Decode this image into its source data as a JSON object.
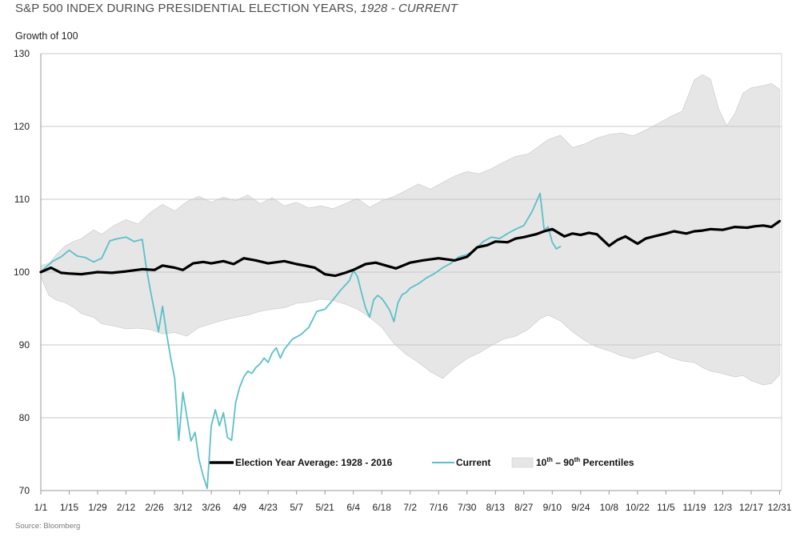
{
  "chart_data": {
    "type": "line",
    "title": "S&P 500 INDEX DURING PRESIDENTIAL ELECTION YEARS,",
    "title_suffix": "1928 - CURRENT",
    "ylabel": "Growth of 100",
    "source": "Source: Bloomberg",
    "ylim": [
      70,
      130
    ],
    "yticks": [
      70,
      80,
      90,
      100,
      110,
      120,
      130
    ],
    "xlim": [
      0,
      365
    ],
    "xticks": [
      {
        "label": "1/1",
        "day": 0
      },
      {
        "label": "1/15",
        "day": 14
      },
      {
        "label": "1/29",
        "day": 28
      },
      {
        "label": "2/12",
        "day": 42
      },
      {
        "label": "2/26",
        "day": 56
      },
      {
        "label": "3/12",
        "day": 70
      },
      {
        "label": "3/26",
        "day": 84
      },
      {
        "label": "4/9",
        "day": 98
      },
      {
        "label": "4/23",
        "day": 112
      },
      {
        "label": "5/7",
        "day": 126
      },
      {
        "label": "5/21",
        "day": 140
      },
      {
        "label": "6/4",
        "day": 154
      },
      {
        "label": "6/18",
        "day": 168
      },
      {
        "label": "7/2",
        "day": 182
      },
      {
        "label": "7/16",
        "day": 196
      },
      {
        "label": "7/30",
        "day": 210
      },
      {
        "label": "8/13",
        "day": 224
      },
      {
        "label": "8/27",
        "day": 238
      },
      {
        "label": "9/10",
        "day": 252
      },
      {
        "label": "9/24",
        "day": 266
      },
      {
        "label": "10/8",
        "day": 280
      },
      {
        "label": "10/22",
        "day": 294
      },
      {
        "label": "11/5",
        "day": 308
      },
      {
        "label": "11/19",
        "day": 322
      },
      {
        "label": "12/3",
        "day": 336
      },
      {
        "label": "12/17",
        "day": 350
      },
      {
        "label": "12/31",
        "day": 364
      }
    ],
    "legend": {
      "average": "Election Year Average: 1928 - 2016",
      "current": "Current",
      "band_prefix": "10",
      "band_sup1": "th",
      "band_mid": " – 90",
      "band_sup2": "th",
      "band_suffix": " Percentiles"
    },
    "colors": {
      "average": "#000000",
      "current": "#5bc0c9",
      "band": "#e6e6e6",
      "band_edge": "#c8c8c8",
      "grid": "#c8c8c8"
    },
    "series": [
      {
        "name": "Election Year Average: 1928 - 2016",
        "x": [
          0,
          5,
          10,
          14,
          20,
          28,
          35,
          42,
          50,
          56,
          60,
          66,
          70,
          75,
          80,
          84,
          90,
          95,
          100,
          106,
          112,
          120,
          126,
          130,
          135,
          140,
          145,
          150,
          154,
          160,
          165,
          170,
          175,
          182,
          188,
          196,
          204,
          210,
          215,
          220,
          224,
          230,
          234,
          238,
          244,
          248,
          252,
          258,
          262,
          266,
          270,
          274,
          280,
          284,
          288,
          294,
          298,
          302,
          308,
          312,
          318,
          322,
          326,
          330,
          336,
          342,
          348,
          352,
          356,
          360,
          364
        ],
        "values": [
          100,
          100.6,
          99.9,
          99.8,
          99.7,
          100,
          99.9,
          100.1,
          100.4,
          100.3,
          100.9,
          100.6,
          100.3,
          101.2,
          101.4,
          101.2,
          101.5,
          101.1,
          101.9,
          101.6,
          101.2,
          101.5,
          101.1,
          100.9,
          100.6,
          99.7,
          99.5,
          99.9,
          100.3,
          101.1,
          101.3,
          100.9,
          100.5,
          101.3,
          101.6,
          101.9,
          101.6,
          102.1,
          103.4,
          103.7,
          104.2,
          104.1,
          104.6,
          104.8,
          105.2,
          105.6,
          105.9,
          104.9,
          105.3,
          105.1,
          105.4,
          105.2,
          103.6,
          104.4,
          104.9,
          103.9,
          104.6,
          104.9,
          105.3,
          105.6,
          105.3,
          105.6,
          105.7,
          105.9,
          105.8,
          106.2,
          106.1,
          106.3,
          106.4,
          106.2,
          107.0
        ]
      },
      {
        "name": "Current",
        "x": [
          0,
          3,
          6,
          10,
          14,
          18,
          22,
          26,
          30,
          34,
          38,
          42,
          46,
          50,
          52,
          54,
          56,
          58,
          60,
          62,
          64,
          66,
          68,
          70,
          72,
          74,
          76,
          78,
          80,
          82,
          84,
          86,
          88,
          90,
          92,
          94,
          96,
          98,
          100,
          102,
          104,
          106,
          108,
          110,
          112,
          114,
          116,
          118,
          120,
          124,
          128,
          132,
          136,
          140,
          144,
          148,
          152,
          154,
          156,
          158,
          160,
          162,
          164,
          166,
          168,
          170,
          172,
          174,
          176,
          178,
          180,
          182,
          186,
          190,
          194,
          198,
          202,
          206,
          210,
          214,
          218,
          222,
          226,
          230,
          234,
          238,
          242,
          246,
          248,
          250,
          252,
          254,
          256
        ],
        "values": [
          100,
          100.8,
          101.5,
          102.1,
          103,
          102.2,
          102,
          101.4,
          101.9,
          104.3,
          104.6,
          104.8,
          104.2,
          104.5,
          100.6,
          97.5,
          94.6,
          91.8,
          95.3,
          91.5,
          88.2,
          85.4,
          76.9,
          83.5,
          80.1,
          76.8,
          78,
          74.2,
          72,
          70.3,
          78.9,
          81.1,
          78.9,
          80.7,
          77.3,
          76.9,
          82.1,
          84.2,
          85.6,
          86.4,
          86.1,
          86.9,
          87.4,
          88.2,
          87.6,
          88.9,
          89.6,
          88.2,
          89.4,
          90.8,
          91.4,
          92.4,
          94.6,
          94.9,
          96.2,
          97.6,
          98.8,
          100.2,
          99.4,
          97.2,
          95.1,
          93.8,
          96.2,
          96.8,
          96.4,
          95.6,
          94.7,
          93.2,
          95.8,
          96.9,
          97.2,
          97.8,
          98.4,
          99.2,
          99.8,
          100.6,
          101.2,
          102.1,
          102.4,
          103.1,
          104.2,
          104.8,
          104.6,
          105.3,
          105.9,
          106.4,
          108.3,
          110.8,
          105.8,
          106.2,
          104.1,
          103.2,
          103.5
        ]
      }
    ],
    "band": {
      "name": "10th – 90th Percentiles",
      "x": [
        0,
        4,
        8,
        12,
        16,
        20,
        26,
        30,
        36,
        42,
        48,
        54,
        60,
        66,
        72,
        78,
        84,
        90,
        96,
        102,
        108,
        114,
        120,
        126,
        132,
        138,
        144,
        150,
        156,
        162,
        168,
        174,
        180,
        186,
        192,
        198,
        204,
        210,
        216,
        222,
        228,
        234,
        240,
        246,
        250,
        256,
        262,
        268,
        274,
        280,
        286,
        292,
        298,
        304,
        310,
        316,
        322,
        326,
        330,
        334,
        338,
        342,
        346,
        350,
        356,
        360,
        364
      ],
      "upper": [
        100.9,
        101.2,
        102.5,
        103.6,
        104.2,
        104.6,
        105.8,
        105.2,
        106.4,
        107.2,
        106.6,
        108.2,
        109.3,
        108.4,
        109.7,
        110.4,
        109.6,
        110.3,
        109.8,
        110.6,
        109.4,
        110.2,
        109.1,
        109.6,
        108.8,
        109.1,
        108.7,
        109.4,
        110.1,
        108.9,
        109.8,
        110.4,
        111.2,
        112.1,
        111.4,
        112.3,
        113.2,
        113.8,
        113.5,
        114.2,
        115.1,
        115.9,
        116.2,
        117.4,
        118.2,
        118.8,
        117.1,
        117.6,
        118.4,
        118.9,
        119.1,
        118.7,
        119.5,
        120.4,
        121.3,
        122.1,
        126.4,
        127.1,
        126.5,
        122.4,
        120.1,
        121.8,
        124.6,
        125.3,
        125.6,
        125.9,
        125.1
      ],
      "lower": [
        99.3,
        96.8,
        96.1,
        95.8,
        95.2,
        94.3,
        93.8,
        92.9,
        92.6,
        92.2,
        92.3,
        92.1,
        91.5,
        91.7,
        91.2,
        92.4,
        92.9,
        93.4,
        93.8,
        94.1,
        94.6,
        94.9,
        95.1,
        95.7,
        95.9,
        96.3,
        96.1,
        95.6,
        94.9,
        93.8,
        92.4,
        90.2,
        88.7,
        87.6,
        86.3,
        85.4,
        86.9,
        88.1,
        88.9,
        89.9,
        90.8,
        91.2,
        92.1,
        93.6,
        94.1,
        93.3,
        91.8,
        90.6,
        89.7,
        89.2,
        88.5,
        88.1,
        88.6,
        89.1,
        88.3,
        87.8,
        87.6,
        86.9,
        86.4,
        86.2,
        85.9,
        85.6,
        85.8,
        85.1,
        84.5,
        84.7,
        85.9
      ]
    }
  }
}
